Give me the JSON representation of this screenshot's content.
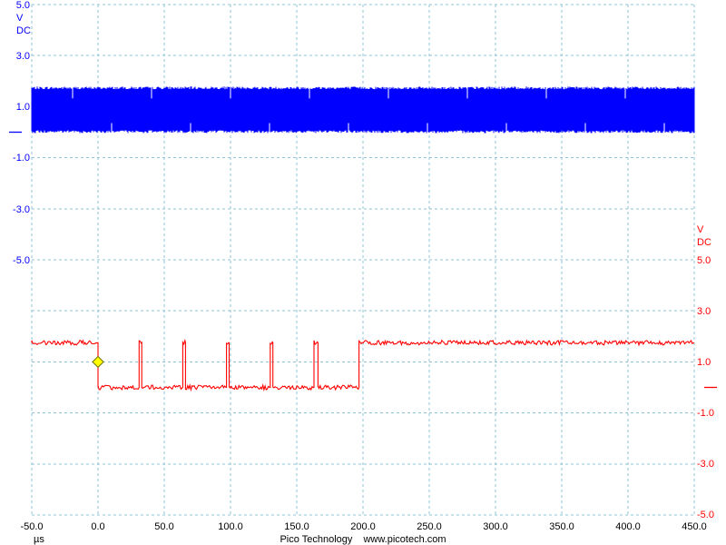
{
  "chart_data": {
    "type": "line",
    "x": {
      "unit": "µs",
      "ticks": [
        "-50.0",
        "0.0",
        "50.0",
        "100.0",
        "150.0",
        "200.0",
        "250.0",
        "300.0",
        "350.0",
        "400.0",
        "450.0"
      ],
      "range": [
        -50,
        450
      ]
    },
    "channel_a": {
      "color": "#0000ff",
      "unit_label": "V",
      "coupling_label": "DC",
      "ticks": [
        "5.0",
        "3.0",
        "1.0",
        "-1.0",
        "-3.0",
        "-5.0"
      ],
      "range": [
        -5,
        5
      ],
      "zero_offset_units": 4.5,
      "signal": {
        "kind": "noisy_band",
        "x_start": -50,
        "x_end": 450,
        "low": 0.0,
        "high": 1.75
      }
    },
    "channel_b": {
      "color": "#ff0000",
      "unit_label": "V",
      "coupling_label": "DC",
      "ticks": [
        "5.0",
        "3.0",
        "1.0",
        "-1.0",
        "-3.0",
        "-5.0"
      ],
      "range": [
        -5,
        5
      ],
      "zero_offset_units": -5.0,
      "signal": {
        "kind": "digital",
        "high": 1.75,
        "low": 0.0,
        "points": [
          [
            -50,
            1.75
          ],
          [
            0,
            1.75
          ],
          [
            0,
            0.0
          ],
          [
            31,
            0.0
          ],
          [
            31,
            1.75
          ],
          [
            33,
            1.75
          ],
          [
            33,
            0.0
          ],
          [
            64,
            0.0
          ],
          [
            64,
            1.75
          ],
          [
            66,
            1.75
          ],
          [
            66,
            0.0
          ],
          [
            97,
            0.0
          ],
          [
            97,
            1.75
          ],
          [
            99,
            1.75
          ],
          [
            99,
            0.0
          ],
          [
            130,
            0.0
          ],
          [
            130,
            1.75
          ],
          [
            132,
            1.75
          ],
          [
            132,
            0.0
          ],
          [
            163,
            0.0
          ],
          [
            163,
            1.75
          ],
          [
            166,
            1.75
          ],
          [
            166,
            0.0
          ],
          [
            197,
            0.0
          ],
          [
            197,
            1.75
          ],
          [
            450,
            1.75
          ]
        ]
      }
    },
    "trigger": {
      "x": 0,
      "level": 1.0,
      "color": "#ffff00"
    },
    "grid": true
  },
  "footer": {
    "company": "Pico Technology",
    "website": "www.picotech.com"
  }
}
